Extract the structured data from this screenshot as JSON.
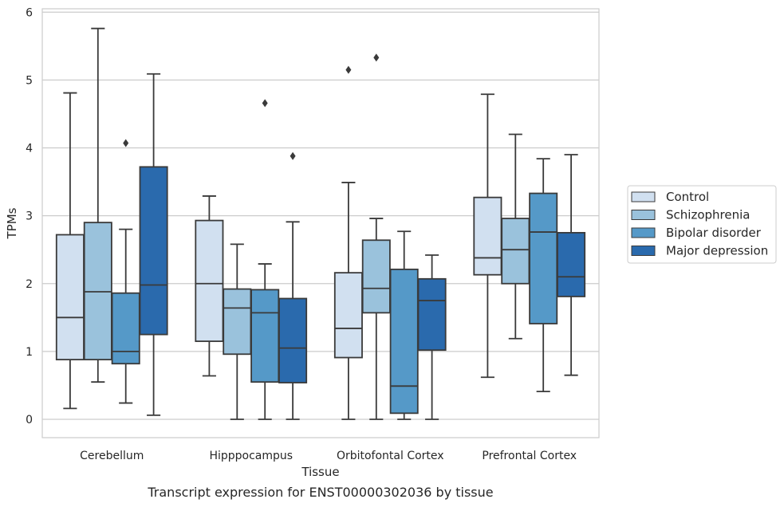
{
  "chart_data": {
    "type": "boxplot",
    "caption": "Transcript expression for ENST00000302036 by tissue",
    "xlabel": "Tissue",
    "ylabel": "TPMs",
    "ylim": [
      -0.27,
      6.05
    ],
    "yticks": [
      0,
      1,
      2,
      3,
      4,
      5,
      6
    ],
    "grid": true,
    "legend_position": "right",
    "categories": [
      "Cerebellum",
      "Hipppocampus",
      "Orbitofontal Cortex",
      "Prefrontal Cortex"
    ],
    "series": [
      {
        "name": "Control",
        "color": "#d1e0f0",
        "boxes": [
          {
            "whislo": 0.16,
            "q1": 0.88,
            "med": 1.5,
            "q3": 2.72,
            "whishi": 4.81,
            "fliers": []
          },
          {
            "whislo": 0.64,
            "q1": 1.15,
            "med": 2.0,
            "q3": 2.93,
            "whishi": 3.29,
            "fliers": []
          },
          {
            "whislo": 0.0,
            "q1": 0.91,
            "med": 1.34,
            "q3": 2.16,
            "whishi": 3.49,
            "fliers": [
              5.15
            ]
          },
          {
            "whislo": 0.62,
            "q1": 2.13,
            "med": 2.38,
            "q3": 3.27,
            "whishi": 4.79,
            "fliers": []
          }
        ]
      },
      {
        "name": "Schizophrenia",
        "color": "#9ac2dc",
        "boxes": [
          {
            "whislo": 0.55,
            "q1": 0.88,
            "med": 1.88,
            "q3": 2.9,
            "whishi": 5.76,
            "fliers": []
          },
          {
            "whislo": 0.0,
            "q1": 0.96,
            "med": 1.64,
            "q3": 1.92,
            "whishi": 2.58,
            "fliers": []
          },
          {
            "whislo": 0.0,
            "q1": 1.57,
            "med": 1.93,
            "q3": 2.64,
            "whishi": 2.96,
            "fliers": [
              5.33
            ]
          },
          {
            "whislo": 1.19,
            "q1": 2.0,
            "med": 2.5,
            "q3": 2.96,
            "whishi": 4.2,
            "fliers": []
          }
        ]
      },
      {
        "name": "Bipolar disorder",
        "color": "#5599c8",
        "boxes": [
          {
            "whislo": 0.24,
            "q1": 0.82,
            "med": 1.0,
            "q3": 1.86,
            "whishi": 2.8,
            "fliers": [
              4.07
            ]
          },
          {
            "whislo": 0.0,
            "q1": 0.55,
            "med": 1.57,
            "q3": 1.91,
            "whishi": 2.29,
            "fliers": [
              4.66
            ]
          },
          {
            "whislo": 0.0,
            "q1": 0.09,
            "med": 0.49,
            "q3": 2.21,
            "whishi": 2.77,
            "fliers": []
          },
          {
            "whislo": 0.41,
            "q1": 1.41,
            "med": 2.76,
            "q3": 3.33,
            "whishi": 3.84,
            "fliers": []
          }
        ]
      },
      {
        "name": "Major depression",
        "color": "#2a6aad",
        "boxes": [
          {
            "whislo": 0.06,
            "q1": 1.25,
            "med": 1.98,
            "q3": 3.72,
            "whishi": 5.09,
            "fliers": []
          },
          {
            "whislo": 0.0,
            "q1": 0.54,
            "med": 1.05,
            "q3": 1.78,
            "whishi": 2.91,
            "fliers": [
              3.88
            ]
          },
          {
            "whislo": 0.0,
            "q1": 1.02,
            "med": 1.75,
            "q3": 2.07,
            "whishi": 2.42,
            "fliers": []
          },
          {
            "whislo": 0.65,
            "q1": 1.81,
            "med": 2.1,
            "q3": 2.75,
            "whishi": 3.9,
            "fliers": []
          }
        ]
      }
    ]
  }
}
